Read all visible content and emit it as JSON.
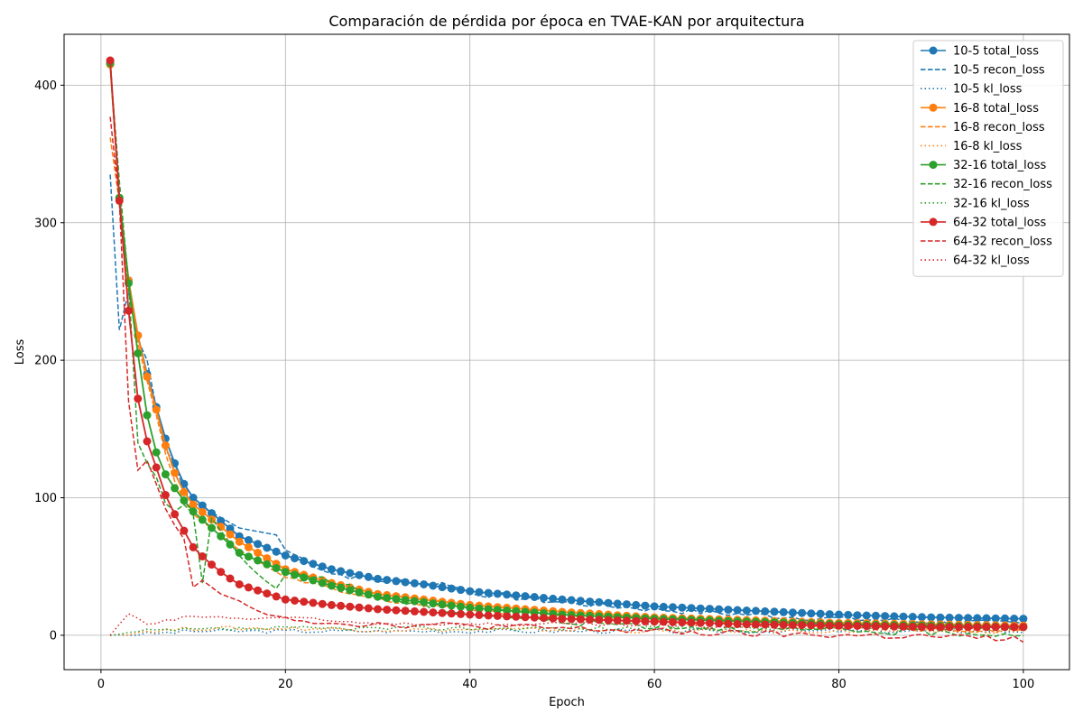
{
  "chart_data": {
    "type": "line",
    "title": "Comparación de pérdida por época en TVAE-KAN por arquitectura",
    "xlabel": "Epoch",
    "ylabel": "Loss",
    "xlim": [
      -4,
      105
    ],
    "ylim": [
      -25,
      437
    ],
    "xticks": [
      0,
      20,
      40,
      60,
      80,
      100
    ],
    "yticks": [
      0,
      100,
      200,
      300,
      400
    ],
    "grid": true,
    "legend_position": "top-right",
    "architectures": [
      {
        "name": "10-5",
        "color": "#1f77b4",
        "total_loss": [
          {
            "x": 1,
            "y": 416
          },
          {
            "x": 2,
            "y": 318
          },
          {
            "x": 3,
            "y": 258
          },
          {
            "x": 4,
            "y": 218
          },
          {
            "x": 5,
            "y": 190
          },
          {
            "x": 6,
            "y": 166
          },
          {
            "x": 7,
            "y": 143
          },
          {
            "x": 8,
            "y": 125
          },
          {
            "x": 9,
            "y": 110
          },
          {
            "x": 10,
            "y": 100
          },
          {
            "x": 15,
            "y": 72
          },
          {
            "x": 20,
            "y": 58
          },
          {
            "x": 25,
            "y": 48
          },
          {
            "x": 30,
            "y": 41
          },
          {
            "x": 35,
            "y": 37
          },
          {
            "x": 40,
            "y": 32
          },
          {
            "x": 50,
            "y": 26
          },
          {
            "x": 60,
            "y": 21
          },
          {
            "x": 70,
            "y": 18
          },
          {
            "x": 80,
            "y": 15
          },
          {
            "x": 90,
            "y": 13
          },
          {
            "x": 100,
            "y": 12
          }
        ],
        "recon_loss": [
          {
            "x": 1,
            "y": 335
          },
          {
            "x": 2,
            "y": 222
          },
          {
            "x": 3,
            "y": 250
          },
          {
            "x": 4,
            "y": 215
          },
          {
            "x": 5,
            "y": 200
          },
          {
            "x": 6,
            "y": 165
          },
          {
            "x": 7,
            "y": 135
          },
          {
            "x": 8,
            "y": 125
          },
          {
            "x": 9,
            "y": 105
          },
          {
            "x": 10,
            "y": 97
          },
          {
            "x": 15,
            "y": 78
          },
          {
            "x": 19,
            "y": 73
          },
          {
            "x": 20,
            "y": 62
          },
          {
            "x": 25,
            "y": 45
          },
          {
            "x": 30,
            "y": 40
          },
          {
            "x": 38,
            "y": 37
          },
          {
            "x": 40,
            "y": 31
          },
          {
            "x": 50,
            "y": 24
          },
          {
            "x": 60,
            "y": 19
          },
          {
            "x": 70,
            "y": 15
          },
          {
            "x": 80,
            "y": 12
          },
          {
            "x": 90,
            "y": 10
          },
          {
            "x": 100,
            "y": 8
          }
        ],
        "kl_loss": [
          {
            "x": 1,
            "y": 0
          },
          {
            "x": 5,
            "y": 1
          },
          {
            "x": 10,
            "y": 3
          },
          {
            "x": 20,
            "y": 3
          },
          {
            "x": 30,
            "y": 3
          },
          {
            "x": 40,
            "y": 3
          },
          {
            "x": 50,
            "y": 3
          },
          {
            "x": 60,
            "y": 3
          },
          {
            "x": 70,
            "y": 3
          },
          {
            "x": 80,
            "y": 3
          },
          {
            "x": 90,
            "y": 3
          },
          {
            "x": 100,
            "y": 3
          }
        ]
      },
      {
        "name": "16-8",
        "color": "#ff7f0e",
        "total_loss": [
          {
            "x": 1,
            "y": 415
          },
          {
            "x": 2,
            "y": 318
          },
          {
            "x": 3,
            "y": 258
          },
          {
            "x": 4,
            "y": 218
          },
          {
            "x": 5,
            "y": 188
          },
          {
            "x": 6,
            "y": 164
          },
          {
            "x": 7,
            "y": 138
          },
          {
            "x": 8,
            "y": 118
          },
          {
            "x": 9,
            "y": 104
          },
          {
            "x": 10,
            "y": 95
          },
          {
            "x": 15,
            "y": 68
          },
          {
            "x": 20,
            "y": 48
          },
          {
            "x": 25,
            "y": 38
          },
          {
            "x": 30,
            "y": 30
          },
          {
            "x": 35,
            "y": 26
          },
          {
            "x": 40,
            "y": 22
          },
          {
            "x": 50,
            "y": 17
          },
          {
            "x": 60,
            "y": 13
          },
          {
            "x": 70,
            "y": 11
          },
          {
            "x": 80,
            "y": 9
          },
          {
            "x": 90,
            "y": 8
          },
          {
            "x": 100,
            "y": 7
          }
        ],
        "recon_loss": [
          {
            "x": 1,
            "y": 362
          },
          {
            "x": 2,
            "y": 315
          },
          {
            "x": 3,
            "y": 250
          },
          {
            "x": 4,
            "y": 212
          },
          {
            "x": 5,
            "y": 185
          },
          {
            "x": 6,
            "y": 160
          },
          {
            "x": 7,
            "y": 132
          },
          {
            "x": 8,
            "y": 112
          },
          {
            "x": 9,
            "y": 98
          },
          {
            "x": 10,
            "y": 88
          },
          {
            "x": 15,
            "y": 62
          },
          {
            "x": 20,
            "y": 42
          },
          {
            "x": 25,
            "y": 33
          },
          {
            "x": 30,
            "y": 26
          },
          {
            "x": 40,
            "y": 19
          },
          {
            "x": 50,
            "y": 14
          },
          {
            "x": 60,
            "y": 11
          },
          {
            "x": 70,
            "y": 8
          },
          {
            "x": 80,
            "y": 6
          },
          {
            "x": 90,
            "y": 5
          },
          {
            "x": 100,
            "y": 4
          }
        ],
        "kl_loss": [
          {
            "x": 1,
            "y": 0
          },
          {
            "x": 5,
            "y": 3
          },
          {
            "x": 10,
            "y": 5
          },
          {
            "x": 20,
            "y": 5
          },
          {
            "x": 30,
            "y": 4
          },
          {
            "x": 40,
            "y": 4
          },
          {
            "x": 50,
            "y": 4
          },
          {
            "x": 60,
            "y": 3
          },
          {
            "x": 70,
            "y": 3
          },
          {
            "x": 80,
            "y": 3
          },
          {
            "x": 90,
            "y": 3
          },
          {
            "x": 100,
            "y": 3
          }
        ]
      },
      {
        "name": "32-16",
        "color": "#2ca02c",
        "total_loss": [
          {
            "x": 1,
            "y": 416
          },
          {
            "x": 2,
            "y": 318
          },
          {
            "x": 3,
            "y": 256
          },
          {
            "x": 4,
            "y": 205
          },
          {
            "x": 5,
            "y": 160
          },
          {
            "x": 6,
            "y": 133
          },
          {
            "x": 7,
            "y": 117
          },
          {
            "x": 8,
            "y": 107
          },
          {
            "x": 9,
            "y": 98
          },
          {
            "x": 10,
            "y": 90
          },
          {
            "x": 15,
            "y": 60
          },
          {
            "x": 20,
            "y": 46
          },
          {
            "x": 25,
            "y": 36
          },
          {
            "x": 30,
            "y": 28
          },
          {
            "x": 35,
            "y": 24
          },
          {
            "x": 40,
            "y": 20
          },
          {
            "x": 50,
            "y": 15
          },
          {
            "x": 60,
            "y": 12
          },
          {
            "x": 70,
            "y": 10
          },
          {
            "x": 80,
            "y": 8
          },
          {
            "x": 90,
            "y": 7
          },
          {
            "x": 100,
            "y": 6
          }
        ],
        "recon_loss": [
          {
            "x": 1,
            "y": 415
          },
          {
            "x": 2,
            "y": 330
          },
          {
            "x": 3,
            "y": 255
          },
          {
            "x": 4,
            "y": 140
          },
          {
            "x": 5,
            "y": 125
          },
          {
            "x": 6,
            "y": 115
          },
          {
            "x": 7,
            "y": 96
          },
          {
            "x": 8,
            "y": 90
          },
          {
            "x": 9,
            "y": 95
          },
          {
            "x": 10,
            "y": 88
          },
          {
            "x": 11,
            "y": 38
          },
          {
            "x": 12,
            "y": 85
          },
          {
            "x": 15,
            "y": 58
          },
          {
            "x": 19,
            "y": 34
          },
          {
            "x": 20,
            "y": 44
          },
          {
            "x": 24,
            "y": 42
          },
          {
            "x": 30,
            "y": 28
          },
          {
            "x": 40,
            "y": 16
          },
          {
            "x": 50,
            "y": 10
          },
          {
            "x": 60,
            "y": 7
          },
          {
            "x": 70,
            "y": 5
          },
          {
            "x": 80,
            "y": 3
          },
          {
            "x": 90,
            "y": 2
          },
          {
            "x": 100,
            "y": 1
          }
        ],
        "kl_loss": [
          {
            "x": 1,
            "y": 0
          },
          {
            "x": 5,
            "y": 3
          },
          {
            "x": 10,
            "y": 4
          },
          {
            "x": 20,
            "y": 5
          },
          {
            "x": 30,
            "y": 5
          },
          {
            "x": 40,
            "y": 5
          },
          {
            "x": 50,
            "y": 5
          },
          {
            "x": 60,
            "y": 5
          },
          {
            "x": 70,
            "y": 5
          },
          {
            "x": 80,
            "y": 5
          },
          {
            "x": 90,
            "y": 5
          },
          {
            "x": 100,
            "y": 5
          }
        ]
      },
      {
        "name": "64-32",
        "color": "#d62728",
        "total_loss": [
          {
            "x": 1,
            "y": 418
          },
          {
            "x": 2,
            "y": 316
          },
          {
            "x": 3,
            "y": 236
          },
          {
            "x": 4,
            "y": 172
          },
          {
            "x": 5,
            "y": 141
          },
          {
            "x": 6,
            "y": 122
          },
          {
            "x": 7,
            "y": 102
          },
          {
            "x": 8,
            "y": 88
          },
          {
            "x": 9,
            "y": 76
          },
          {
            "x": 10,
            "y": 64
          },
          {
            "x": 15,
            "y": 37
          },
          {
            "x": 20,
            "y": 26
          },
          {
            "x": 25,
            "y": 22
          },
          {
            "x": 30,
            "y": 19
          },
          {
            "x": 35,
            "y": 17
          },
          {
            "x": 40,
            "y": 15
          },
          {
            "x": 50,
            "y": 12
          },
          {
            "x": 60,
            "y": 10
          },
          {
            "x": 70,
            "y": 8
          },
          {
            "x": 80,
            "y": 7
          },
          {
            "x": 90,
            "y": 6
          },
          {
            "x": 100,
            "y": 6
          }
        ],
        "recon_loss": [
          {
            "x": 1,
            "y": 377
          },
          {
            "x": 2,
            "y": 315
          },
          {
            "x": 3,
            "y": 170
          },
          {
            "x": 4,
            "y": 120
          },
          {
            "x": 5,
            "y": 127
          },
          {
            "x": 6,
            "y": 110
          },
          {
            "x": 7,
            "y": 92
          },
          {
            "x": 8,
            "y": 80
          },
          {
            "x": 9,
            "y": 70
          },
          {
            "x": 10,
            "y": 35
          },
          {
            "x": 11,
            "y": 40
          },
          {
            "x": 13,
            "y": 30
          },
          {
            "x": 15,
            "y": 25
          },
          {
            "x": 18,
            "y": 15
          },
          {
            "x": 20,
            "y": 13
          },
          {
            "x": 25,
            "y": 9
          },
          {
            "x": 30,
            "y": 8
          },
          {
            "x": 40,
            "y": 7
          },
          {
            "x": 50,
            "y": 5
          },
          {
            "x": 60,
            "y": 3
          },
          {
            "x": 70,
            "y": 1
          },
          {
            "x": 80,
            "y": 0
          },
          {
            "x": 90,
            "y": -1
          },
          {
            "x": 100,
            "y": -3
          }
        ],
        "kl_loss": [
          {
            "x": 1,
            "y": 0
          },
          {
            "x": 3,
            "y": 16
          },
          {
            "x": 5,
            "y": 8
          },
          {
            "x": 8,
            "y": 11
          },
          {
            "x": 10,
            "y": 14
          },
          {
            "x": 15,
            "y": 12
          },
          {
            "x": 20,
            "y": 13
          },
          {
            "x": 25,
            "y": 10
          },
          {
            "x": 30,
            "y": 9
          },
          {
            "x": 40,
            "y": 8
          },
          {
            "x": 50,
            "y": 8
          },
          {
            "x": 60,
            "y": 7
          },
          {
            "x": 70,
            "y": 6
          },
          {
            "x": 80,
            "y": 6
          },
          {
            "x": 90,
            "y": 5
          },
          {
            "x": 100,
            "y": 5
          }
        ]
      }
    ],
    "legend_entries": [
      {
        "label": "10-5 total_loss",
        "color": "#1f77b4",
        "style": "solid-marker"
      },
      {
        "label": "10-5 recon_loss",
        "color": "#1f77b4",
        "style": "dashed"
      },
      {
        "label": "10-5 kl_loss",
        "color": "#1f77b4",
        "style": "dotted"
      },
      {
        "label": "16-8 total_loss",
        "color": "#ff7f0e",
        "style": "solid-marker"
      },
      {
        "label": "16-8 recon_loss",
        "color": "#ff7f0e",
        "style": "dashed"
      },
      {
        "label": "16-8 kl_loss",
        "color": "#ff7f0e",
        "style": "dotted"
      },
      {
        "label": "32-16 total_loss",
        "color": "#2ca02c",
        "style": "solid-marker"
      },
      {
        "label": "32-16 recon_loss",
        "color": "#2ca02c",
        "style": "dashed"
      },
      {
        "label": "32-16 kl_loss",
        "color": "#2ca02c",
        "style": "dotted"
      },
      {
        "label": "64-32 total_loss",
        "color": "#d62728",
        "style": "solid-marker"
      },
      {
        "label": "64-32 recon_loss",
        "color": "#d62728",
        "style": "dashed"
      },
      {
        "label": "64-32 kl_loss",
        "color": "#d62728",
        "style": "dotted"
      }
    ]
  }
}
